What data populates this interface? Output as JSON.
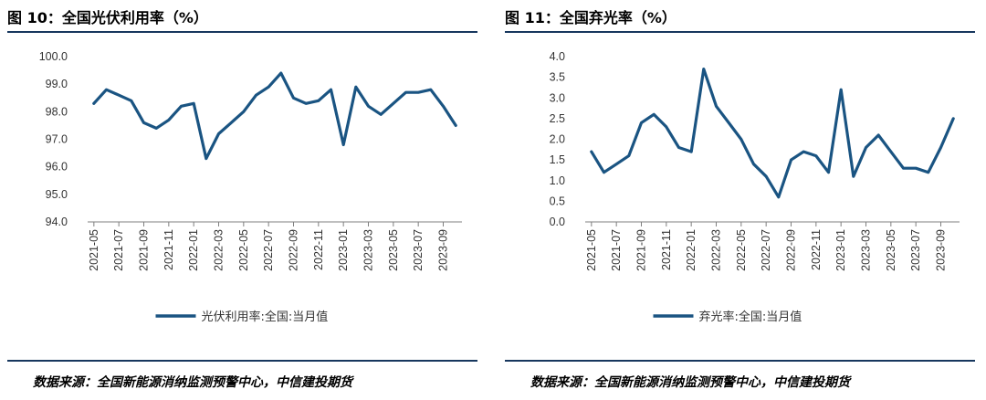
{
  "colors": {
    "series": "#1a5482",
    "axis": "#7f7f7f",
    "rule": "#17375e"
  },
  "panels": [
    {
      "title": "图 10：全国光伏利用率（%）",
      "source": "数据来源：全国新能源消纳监测预警中心，中信建投期货",
      "chart_data": {
        "type": "line",
        "ylim": [
          94.0,
          100.0
        ],
        "yticks": [
          "100.0",
          "99.0",
          "98.0",
          "97.0",
          "96.0",
          "95.0",
          "94.0"
        ],
        "ytick_values": [
          100,
          99,
          98,
          97,
          96,
          95,
          94
        ],
        "grid": false,
        "legend_position": "bottom",
        "x": [
          "2021-05",
          "2021-06",
          "2021-07",
          "2021-08",
          "2021-09",
          "2021-10",
          "2021-11",
          "2021-12",
          "2022-01",
          "2022-02",
          "2022-03",
          "2022-04",
          "2022-05",
          "2022-06",
          "2022-07",
          "2022-08",
          "2022-09",
          "2022-10",
          "2022-11",
          "2022-12",
          "2023-01",
          "2023-02",
          "2023-03",
          "2023-04",
          "2023-05",
          "2023-06",
          "2023-07",
          "2023-08",
          "2023-09",
          "2023-10"
        ],
        "xtick_labels": [
          "2021-05",
          "2021-07",
          "2021-09",
          "2021-11",
          "2022-01",
          "2022-03",
          "2022-05",
          "2022-07",
          "2022-09",
          "2022-11",
          "2023-01",
          "2023-03",
          "2023-05",
          "2023-07",
          "2023-09"
        ],
        "series": [
          {
            "name": "光伏利用率:全国:当月值",
            "values": [
              98.3,
              98.8,
              98.6,
              98.4,
              97.6,
              97.4,
              97.7,
              98.2,
              98.3,
              96.3,
              97.2,
              97.6,
              98.0,
              98.6,
              98.9,
              99.4,
              98.5,
              98.3,
              98.4,
              98.8,
              96.8,
              98.9,
              98.2,
              97.9,
              98.3,
              98.7,
              98.7,
              98.8,
              98.2,
              97.5
            ]
          }
        ]
      }
    },
    {
      "title": "图 11：全国弃光率（%）",
      "source": "数据来源：全国新能源消纳监测预警中心，中信建投期货",
      "chart_data": {
        "type": "line",
        "ylim": [
          0.0,
          4.0
        ],
        "yticks": [
          "4.0",
          "3.5",
          "3.0",
          "2.5",
          "2.0",
          "1.5",
          "1.0",
          "0.5",
          "0.0"
        ],
        "ytick_values": [
          4.0,
          3.5,
          3.0,
          2.5,
          2.0,
          1.5,
          1.0,
          0.5,
          0.0
        ],
        "grid": false,
        "legend_position": "bottom",
        "x": [
          "2021-05",
          "2021-06",
          "2021-07",
          "2021-08",
          "2021-09",
          "2021-10",
          "2021-11",
          "2021-12",
          "2022-01",
          "2022-02",
          "2022-03",
          "2022-04",
          "2022-05",
          "2022-06",
          "2022-07",
          "2022-08",
          "2022-09",
          "2022-10",
          "2022-11",
          "2022-12",
          "2023-01",
          "2023-02",
          "2023-03",
          "2023-04",
          "2023-05",
          "2023-06",
          "2023-07",
          "2023-08",
          "2023-09",
          "2023-10"
        ],
        "xtick_labels": [
          "2021-05",
          "2021-07",
          "2021-09",
          "2021-11",
          "2022-01",
          "2022-03",
          "2022-05",
          "2022-07",
          "2022-09",
          "2022-11",
          "2023-01",
          "2023-03",
          "2023-05",
          "2023-07",
          "2023-09"
        ],
        "series": [
          {
            "name": "弃光率:全国:当月值",
            "values": [
              1.7,
              1.2,
              1.4,
              1.6,
              2.4,
              2.6,
              2.3,
              1.8,
              1.7,
              3.7,
              2.8,
              2.4,
              2.0,
              1.4,
              1.1,
              0.6,
              1.5,
              1.7,
              1.6,
              1.2,
              3.2,
              1.1,
              1.8,
              2.1,
              1.7,
              1.3,
              1.3,
              1.2,
              1.8,
              2.5
            ]
          }
        ]
      }
    }
  ]
}
